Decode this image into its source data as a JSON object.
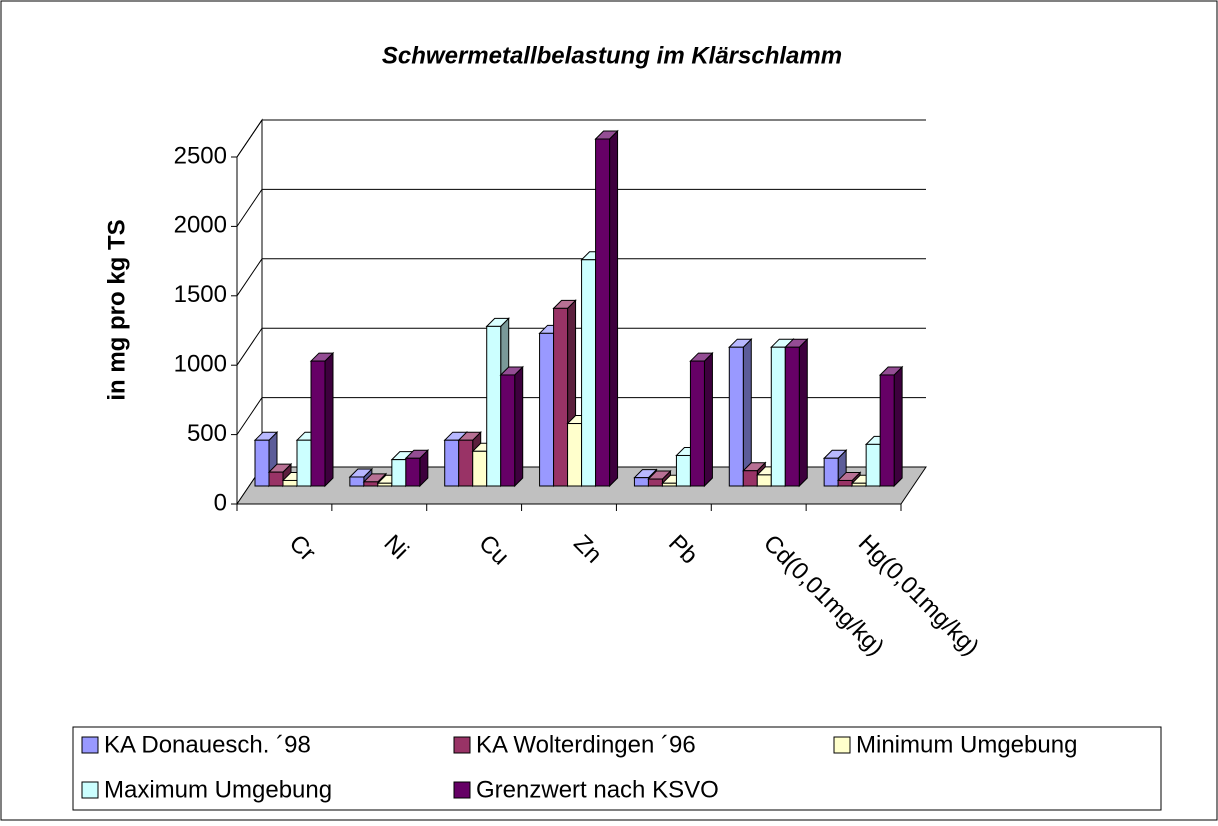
{
  "chart_data": {
    "type": "bar3d",
    "title": "Schwermetallbelastung im Klärschlamm",
    "y_label": "in mg pro kg TS",
    "categories": [
      "Cr",
      "Ni",
      "Cu",
      "Zn",
      "Pb",
      "Cd(0,01mg/kg)",
      "Hg(0,01mg/kg)"
    ],
    "series": [
      {
        "name": "KA Donauesch. ´98",
        "color": "#9999ff",
        "values": [
          330,
          65,
          330,
          1100,
          60,
          1000,
          200
        ]
      },
      {
        "name": "KA Wolterdingen ´96",
        "color": "#993366",
        "values": [
          100,
          30,
          330,
          1280,
          50,
          110,
          40
        ]
      },
      {
        "name": "Minimum Umgebung",
        "color": "#ffffcc",
        "values": [
          40,
          20,
          250,
          450,
          20,
          80,
          20
        ]
      },
      {
        "name": "Maximum Umgebung",
        "color": "#ccffff",
        "values": [
          330,
          190,
          1150,
          1630,
          220,
          1000,
          300
        ]
      },
      {
        "name": "Grenzwert nach KSVO",
        "color": "#660066",
        "values": [
          900,
          200,
          800,
          2500,
          900,
          1000,
          800
        ]
      }
    ],
    "ylim": [
      0,
      2500
    ],
    "yticks": [
      0,
      500,
      1000,
      1500,
      2000,
      2500
    ],
    "grid": true
  }
}
